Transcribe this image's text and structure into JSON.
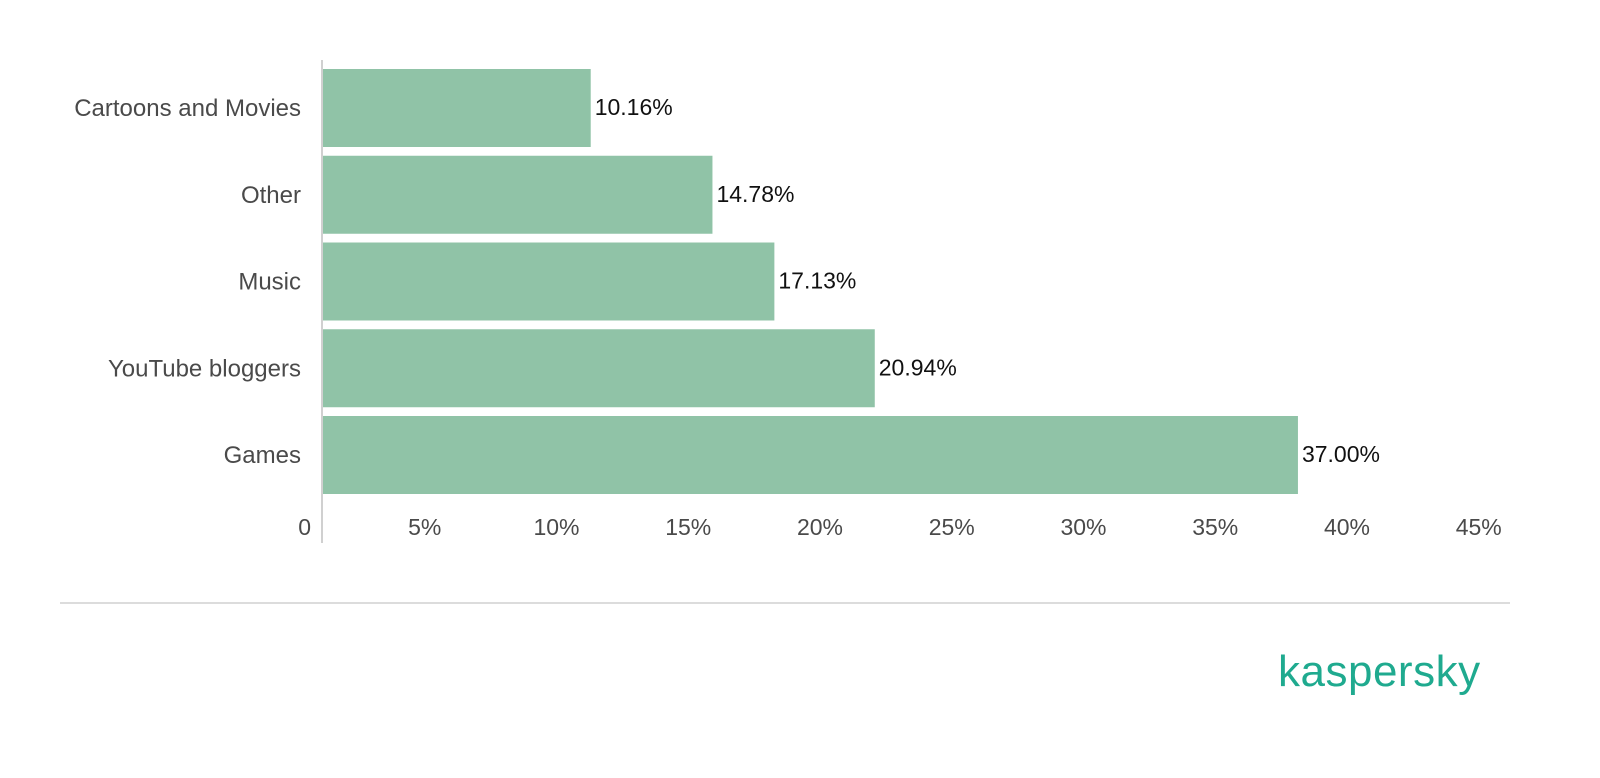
{
  "chart_data": {
    "type": "bar",
    "orientation": "horizontal",
    "categories": [
      "Cartoons and Movies",
      "Other",
      "Music",
      "YouTube bloggers",
      "Games"
    ],
    "values": [
      10.16,
      14.78,
      17.13,
      20.94,
      37.0
    ],
    "value_labels": [
      "10.16%",
      "14.78%",
      "17.13%",
      "20.94%",
      "37.00%"
    ],
    "x_ticks": [
      "0",
      "5%",
      "10%",
      "15%",
      "20%",
      "25%",
      "30%",
      "35%",
      "40%",
      "45%"
    ],
    "xlim": [
      0,
      45
    ],
    "grid": false,
    "legend": "none",
    "bar_color": "#90c3a7"
  },
  "brand": {
    "name": "kaspersky",
    "color": "#1faa8f"
  },
  "colors": {
    "axis": "#d0d0d0",
    "divider": "#dcdcdc"
  }
}
